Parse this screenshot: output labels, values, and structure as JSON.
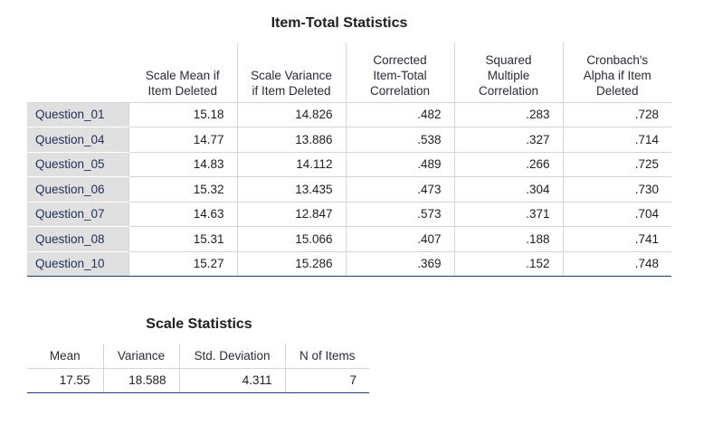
{
  "item_total": {
    "title": "Item-Total Statistics",
    "headers": [
      "Scale Mean if Item Deleted",
      "Scale Variance if Item Deleted",
      "Corrected Item-Total Correlation",
      "Squared Multiple Correlation",
      "Cronbach's Alpha if Item Deleted"
    ],
    "rows": [
      {
        "label": "Question_01",
        "values": [
          "15.18",
          "14.826",
          ".482",
          ".283",
          ".728"
        ]
      },
      {
        "label": "Question_04",
        "values": [
          "14.77",
          "13.886",
          ".538",
          ".327",
          ".714"
        ]
      },
      {
        "label": "Question_05",
        "values": [
          "14.83",
          "14.112",
          ".489",
          ".266",
          ".725"
        ]
      },
      {
        "label": "Question_06",
        "values": [
          "15.32",
          "13.435",
          ".473",
          ".304",
          ".730"
        ]
      },
      {
        "label": "Question_07",
        "values": [
          "14.63",
          "12.847",
          ".573",
          ".371",
          ".704"
        ]
      },
      {
        "label": "Question_08",
        "values": [
          "15.31",
          "15.066",
          ".407",
          ".188",
          ".741"
        ]
      },
      {
        "label": "Question_10",
        "values": [
          "15.27",
          "15.286",
          ".369",
          ".152",
          ".748"
        ]
      }
    ]
  },
  "scale": {
    "title": "Scale Statistics",
    "headers": [
      "Mean",
      "Variance",
      "Std. Deviation",
      "N of Items"
    ],
    "values": [
      "17.55",
      "18.588",
      "4.311",
      "7"
    ]
  }
}
